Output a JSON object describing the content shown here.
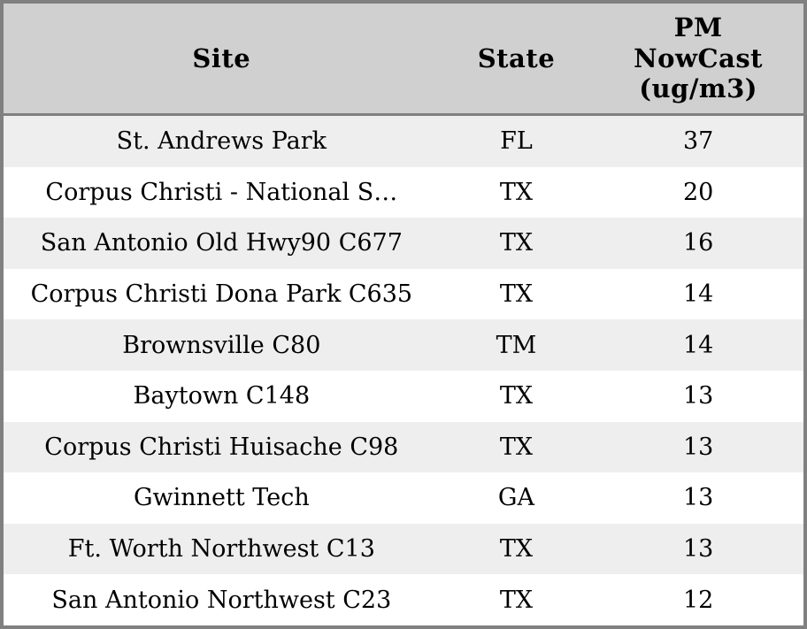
{
  "table": {
    "columns": [
      {
        "label": "Site"
      },
      {
        "label": "State"
      },
      {
        "label": "PM NowCast (ug/m3)",
        "lines": [
          "PM",
          "NowCast",
          "(ug/m3)"
        ]
      }
    ],
    "rows": [
      {
        "site": "St. Andrews Park",
        "state": "FL",
        "value": "37"
      },
      {
        "site": "Corpus Christi - National S…",
        "state": "TX",
        "value": "20"
      },
      {
        "site": "San Antonio Old Hwy90 C677",
        "state": "TX",
        "value": "16"
      },
      {
        "site": "Corpus Christi Dona Park C635",
        "state": "TX",
        "value": "14"
      },
      {
        "site": "Brownsville C80",
        "state": "TM",
        "value": "14"
      },
      {
        "site": "Baytown C148",
        "state": "TX",
        "value": "13"
      },
      {
        "site": "Corpus Christi Huisache C98",
        "state": "TX",
        "value": "13"
      },
      {
        "site": "Gwinnett Tech",
        "state": "GA",
        "value": "13"
      },
      {
        "site": "Ft. Worth Northwest C13",
        "state": "TX",
        "value": "13"
      },
      {
        "site": "San Antonio Northwest C23",
        "state": "TX",
        "value": "12"
      }
    ],
    "colors": {
      "border": "#808080",
      "header_bg": "#d0d0d0",
      "row_alt_bg": "#eeeeee",
      "row_bg": "#ffffff",
      "text": "#000000"
    }
  }
}
